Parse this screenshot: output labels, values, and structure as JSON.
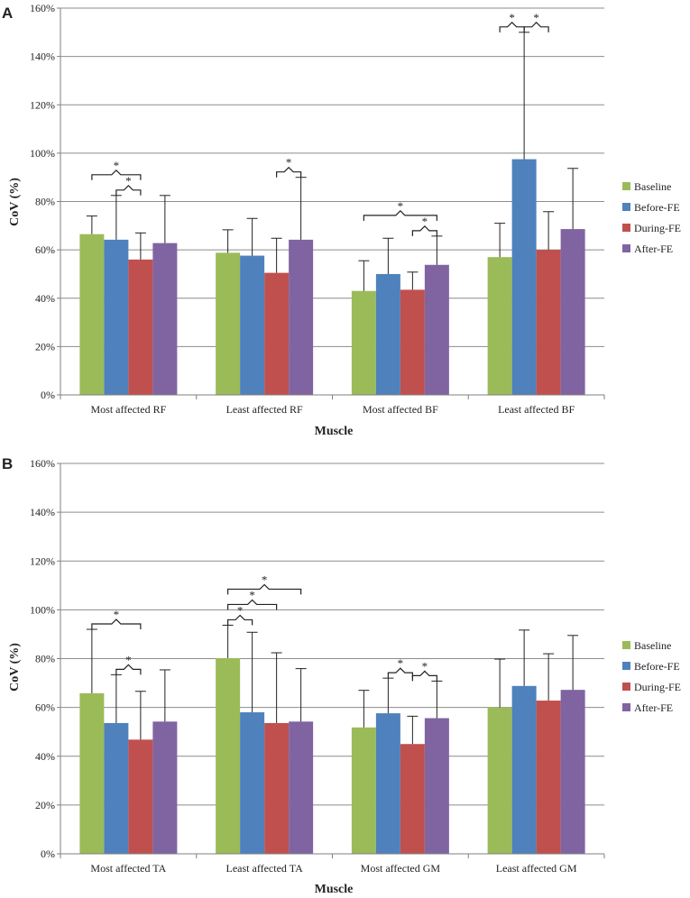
{
  "colors": {
    "Baseline": "#9bbb59",
    "Before-FE": "#4f81bd",
    "During-FE": "#c0504d",
    "After-FE": "#8064a2",
    "grid": "#8c8c8c",
    "axis": "#7f7f7f",
    "error": "#222222"
  },
  "chart_data": [
    {
      "type": "bar",
      "panel": "A",
      "xlabel": "Muscle",
      "ylabel": "CoV (%)",
      "ylim": [
        0,
        160
      ],
      "yticks": [
        0,
        20,
        40,
        60,
        80,
        100,
        120,
        140,
        160
      ],
      "tick_labels": [
        "0%",
        "20%",
        "40%",
        "60%",
        "80%",
        "100%",
        "120%",
        "140%",
        "160%"
      ],
      "grid": true,
      "legend_position": "right",
      "categories": [
        "Most affected RF",
        "Least affected RF",
        "Most affected BF",
        "Least affected BF"
      ],
      "series": [
        {
          "name": "Baseline",
          "values": [
            66.5,
            58.8,
            43,
            57
          ],
          "errors": [
            7.5,
            9.5,
            12.5,
            14
          ]
        },
        {
          "name": "Before-FE",
          "values": [
            64.2,
            57.6,
            50,
            97.5
          ],
          "errors": [
            18.3,
            15.4,
            14.8,
            52.5
          ]
        },
        {
          "name": "During-FE",
          "values": [
            56,
            50.5,
            43.5,
            60
          ],
          "errors": [
            11,
            14.3,
            7.3,
            15.8
          ]
        },
        {
          "name": "After-FE",
          "values": [
            62.8,
            64.2,
            53.8,
            68.6
          ],
          "errors": [
            19.7,
            25.8,
            11.9,
            25.1
          ]
        }
      ],
      "significance": [
        {
          "category": 0,
          "from": 0,
          "to": 2,
          "level": 1,
          "label": "*"
        },
        {
          "category": 0,
          "from": 1,
          "to": 2,
          "level": 0,
          "label": "*"
        },
        {
          "category": 1,
          "from": 2,
          "to": 3,
          "level": 0,
          "label": "*"
        },
        {
          "category": 2,
          "from": 0,
          "to": 3,
          "level": 1,
          "label": "*"
        },
        {
          "category": 2,
          "from": 2,
          "to": 3,
          "level": 0,
          "label": "*"
        },
        {
          "category": 3,
          "from": 0,
          "to": 1,
          "level": 0,
          "label": "*"
        },
        {
          "category": 3,
          "from": 1,
          "to": 2,
          "level": 0,
          "label": "*"
        }
      ]
    },
    {
      "type": "bar",
      "panel": "B",
      "xlabel": "Muscle",
      "ylabel": "CoV (%)",
      "ylim": [
        0,
        160
      ],
      "yticks": [
        0,
        20,
        40,
        60,
        80,
        100,
        120,
        140,
        160
      ],
      "tick_labels": [
        "0%",
        "20%",
        "40%",
        "60%",
        "80%",
        "100%",
        "120%",
        "140%",
        "160%"
      ],
      "grid": true,
      "legend_position": "right",
      "categories": [
        "Most affected TA",
        "Least affected TA",
        "Most affected GM",
        "Least affected GM"
      ],
      "series": [
        {
          "name": "Baseline",
          "values": [
            65.8,
            80.2,
            51.8,
            60
          ],
          "errors": [
            26.2,
            13.5,
            15.2,
            19.8
          ]
        },
        {
          "name": "Before-FE",
          "values": [
            53.6,
            58,
            57.6,
            68.8
          ],
          "errors": [
            19.8,
            32.8,
            14.4,
            22.9
          ]
        },
        {
          "name": "During-FE",
          "values": [
            46.8,
            53.6,
            45,
            62.8
          ],
          "errors": [
            19.8,
            28.8,
            11.4,
            19.2
          ]
        },
        {
          "name": "After-FE",
          "values": [
            54.2,
            54.2,
            55.6,
            67.2
          ],
          "errors": [
            21.2,
            21.7,
            15.2,
            22.3
          ]
        }
      ],
      "significance": [
        {
          "category": 0,
          "from": 0,
          "to": 2,
          "level": 0,
          "label": "*"
        },
        {
          "category": 0,
          "from": 1,
          "to": 2,
          "level": 0,
          "label": "*"
        },
        {
          "category": 1,
          "from": 0,
          "to": 1,
          "level": 0,
          "label": "*"
        },
        {
          "category": 1,
          "from": 0,
          "to": 2,
          "level": 1,
          "label": "*"
        },
        {
          "category": 1,
          "from": 0,
          "to": 3,
          "level": 2,
          "label": "*"
        },
        {
          "category": 2,
          "from": 1,
          "to": 2,
          "level": 0,
          "label": "*"
        },
        {
          "category": 2,
          "from": 2,
          "to": 3,
          "level": 0,
          "label": "*"
        }
      ]
    }
  ]
}
